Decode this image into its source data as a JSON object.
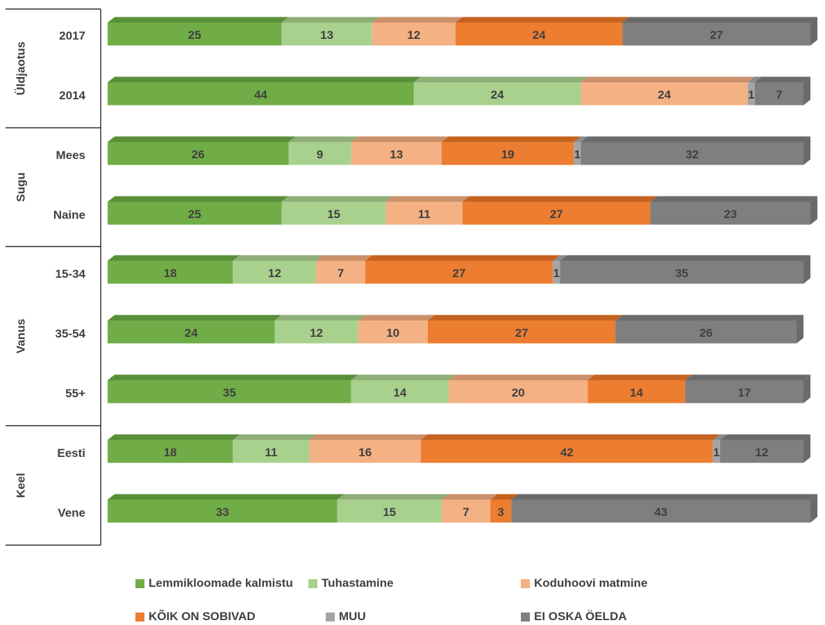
{
  "chart_data": {
    "type": "bar",
    "orientation": "horizontal",
    "stacked": true,
    "style": "3d",
    "groups": [
      {
        "name": "Üldjaotus",
        "rows": [
          {
            "label": "2017",
            "values": [
              25,
              13,
              12,
              24,
              null,
              27
            ]
          },
          {
            "label": "2014",
            "values": [
              44,
              24,
              24,
              null,
              1,
              7
            ]
          }
        ]
      },
      {
        "name": "Sugu",
        "rows": [
          {
            "label": "Mees",
            "values": [
              26,
              9,
              13,
              19,
              1,
              32
            ]
          },
          {
            "label": "Naine",
            "values": [
              25,
              15,
              11,
              27,
              null,
              23
            ]
          }
        ]
      },
      {
        "name": "Vanus",
        "rows": [
          {
            "label": "15-34",
            "values": [
              18,
              12,
              7,
              27,
              1,
              35
            ]
          },
          {
            "label": "35-54",
            "values": [
              24,
              12,
              10,
              27,
              null,
              26
            ]
          },
          {
            "label": "55+",
            "values": [
              35,
              14,
              20,
              14,
              null,
              17
            ]
          }
        ]
      },
      {
        "name": "Keel",
        "rows": [
          {
            "label": "Eesti",
            "values": [
              18,
              11,
              16,
              42,
              1,
              12
            ]
          },
          {
            "label": "Vene",
            "values": [
              33,
              15,
              7,
              3,
              null,
              43
            ]
          }
        ]
      }
    ],
    "series": [
      {
        "name": "Lemmikloomade kalmistu",
        "color": "#70ad47",
        "top": "#5a8f38",
        "label_color": "#404040"
      },
      {
        "name": "Tuhastamine",
        "color": "#a9d18e",
        "top": "#8fae78",
        "label_color": "#404040"
      },
      {
        "name": "Koduhoovi matmine",
        "color": "#f4b183",
        "top": "#c9906a",
        "label_color": "#404040"
      },
      {
        "name": "KÕIK ON SOBIVAD",
        "color": "#ed7d31",
        "top": "#c4621f",
        "label_color": "#404040"
      },
      {
        "name": "MUU",
        "color": "#a5a5a5",
        "top": "#8a8a8a",
        "label_color": "#404040"
      },
      {
        "name": "EI OSKA ÖELDA",
        "color": "#7f7f7f",
        "top": "#6a6a6a",
        "label_color": "#404040"
      }
    ],
    "legend_position": "bottom",
    "grid": false
  }
}
